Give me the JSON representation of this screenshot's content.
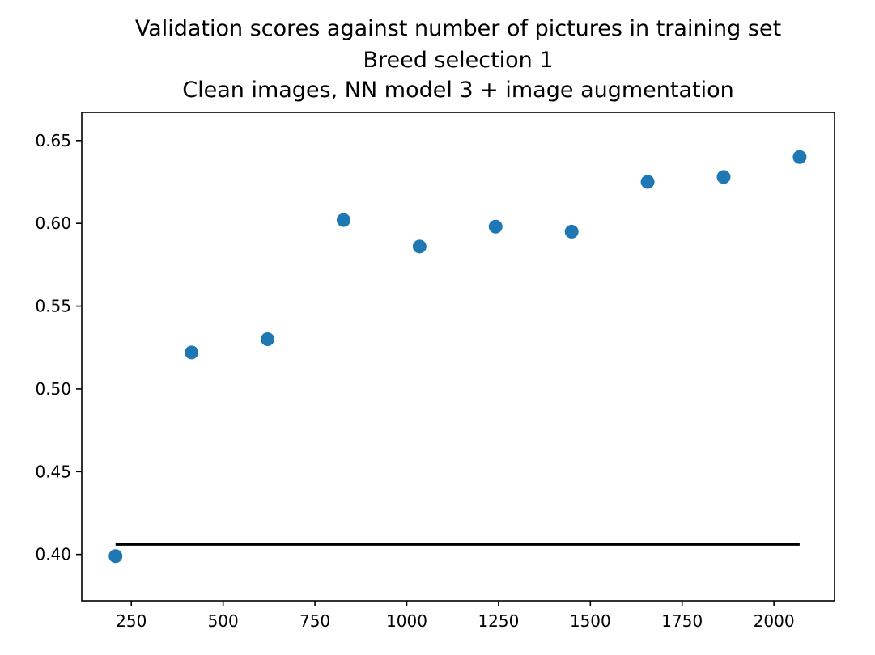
{
  "chart_data": {
    "type": "scatter",
    "title_lines": [
      "Validation scores against number of pictures in training set",
      "Breed selection 1",
      "Clean images, NN model 3 + image augmentation"
    ],
    "xlabel": "",
    "ylabel": "",
    "xlim": [
      115,
      2165
    ],
    "ylim": [
      0.372,
      0.667
    ],
    "xticks": [
      250,
      500,
      750,
      1000,
      1250,
      1500,
      1750,
      2000
    ],
    "xtick_labels": [
      "250",
      "500",
      "750",
      "1000",
      "1250",
      "1500",
      "1750",
      "2000"
    ],
    "yticks": [
      0.4,
      0.45,
      0.5,
      0.55,
      0.6,
      0.65
    ],
    "ytick_labels": [
      "0.40",
      "0.45",
      "0.50",
      "0.55",
      "0.60",
      "0.65"
    ],
    "grid": false,
    "series": [
      {
        "kind": "scatter",
        "color": "#1f77b4",
        "x": [
          207,
          414,
          621,
          828,
          1035,
          1242,
          1449,
          1656,
          1863,
          2070
        ],
        "y": [
          0.399,
          0.522,
          0.53,
          0.602,
          0.586,
          0.598,
          0.595,
          0.625,
          0.628,
          0.64
        ]
      },
      {
        "kind": "line",
        "color": "#000000",
        "x": [
          207,
          2070
        ],
        "y": [
          0.406,
          0.406
        ]
      }
    ]
  }
}
